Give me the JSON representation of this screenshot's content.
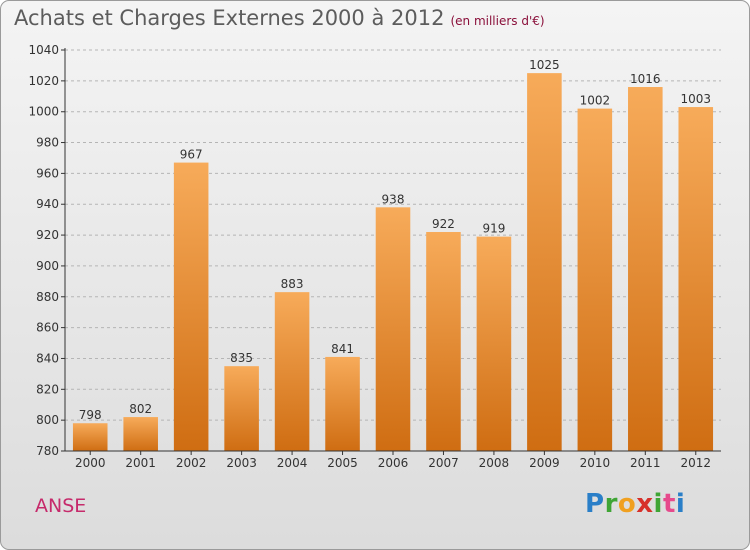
{
  "header": {
    "title": "Achats et Charges Externes 2000 à 2012",
    "subtitle": "(en milliers d'€)"
  },
  "footer": {
    "place": "ANSE",
    "logo_text": "Proxiti",
    "logo_colors": [
      "#2a7fc8",
      "#3fa535",
      "#f0a020",
      "#d7302a",
      "#3fa535",
      "#e64a8c",
      "#2a7fc8"
    ]
  },
  "colors": {
    "bar_top": "#f7ab5a",
    "bar_bottom": "#cf6d12",
    "grid": "#b5b5b5",
    "axis": "#333333"
  },
  "chart_data": {
    "type": "bar",
    "title": "Achats et Charges Externes 2000 à 2012",
    "xlabel": "",
    "ylabel": "",
    "categories": [
      "2000",
      "2001",
      "2002",
      "2003",
      "2004",
      "2005",
      "2006",
      "2007",
      "2008",
      "2009",
      "2010",
      "2011",
      "2012"
    ],
    "values": [
      798,
      802,
      967,
      835,
      883,
      841,
      938,
      922,
      919,
      1025,
      1002,
      1016,
      1003
    ],
    "ylim": [
      780,
      1040
    ],
    "yticks": [
      780,
      800,
      820,
      840,
      860,
      880,
      900,
      920,
      940,
      960,
      980,
      1000,
      1020,
      1040
    ],
    "grid": true,
    "data_labels": true
  }
}
